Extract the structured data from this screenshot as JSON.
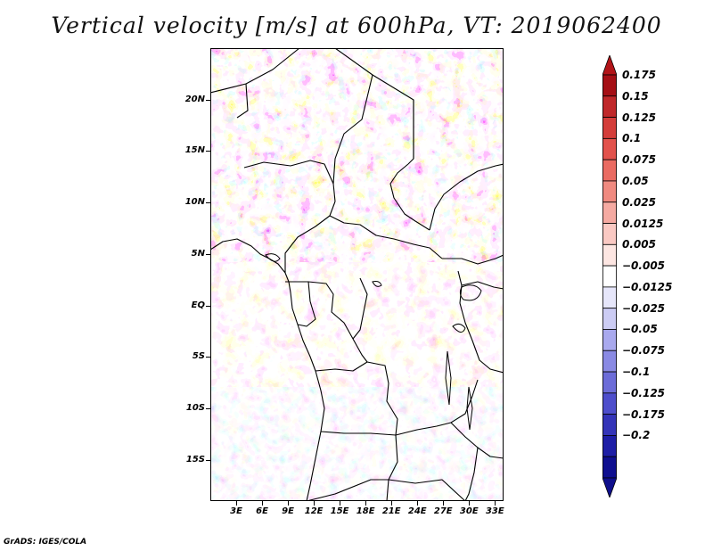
{
  "title": "Vertical velocity [m/s] at 600hPa, VT: 2019062400",
  "map": {
    "variable": "Vertical velocity",
    "units": "m/s",
    "level": "600hPa",
    "valid_time": "2019062400",
    "lat_range": [
      -19,
      25
    ],
    "lon_range": [
      0,
      34
    ],
    "lat_ticks": [
      "20N",
      "15N",
      "10N",
      "5N",
      "EQ",
      "5S",
      "10S",
      "15S"
    ],
    "lat_tick_values": [
      20,
      15,
      10,
      5,
      0,
      -5,
      -10,
      -15
    ],
    "lon_ticks": [
      "3E",
      "6E",
      "9E",
      "12E",
      "15E",
      "18E",
      "21E",
      "24E",
      "27E",
      "30E",
      "33E"
    ],
    "lon_tick_values": [
      3,
      6,
      9,
      12,
      15,
      18,
      21,
      24,
      27,
      30,
      33
    ]
  },
  "colorbar": {
    "labels": [
      "0.175",
      "0.15",
      "0.125",
      "0.1",
      "0.075",
      "0.05",
      "0.025",
      "0.0125",
      "0.005",
      "-0.005",
      "-0.0125",
      "-0.025",
      "-0.05",
      "-0.075",
      "-0.1",
      "-0.125",
      "-0.175",
      "-0.2"
    ],
    "colors": [
      "#a50f15",
      "#c0282a",
      "#d43d3a",
      "#e2524c",
      "#ea6b62",
      "#f08a80",
      "#f5aaa2",
      "#fac9c3",
      "#fde6e2",
      "#ffffff",
      "#e6e6fa",
      "#ccccf4",
      "#a9a9ee",
      "#8a8ae4",
      "#6c6cd8",
      "#4e4ecc",
      "#3434b8",
      "#1e1ea6",
      "#0f0f90"
    ],
    "min_color": "#0f0f8c",
    "max_color": "#b21418"
  },
  "credit": "GrADS: IGES/COLA"
}
